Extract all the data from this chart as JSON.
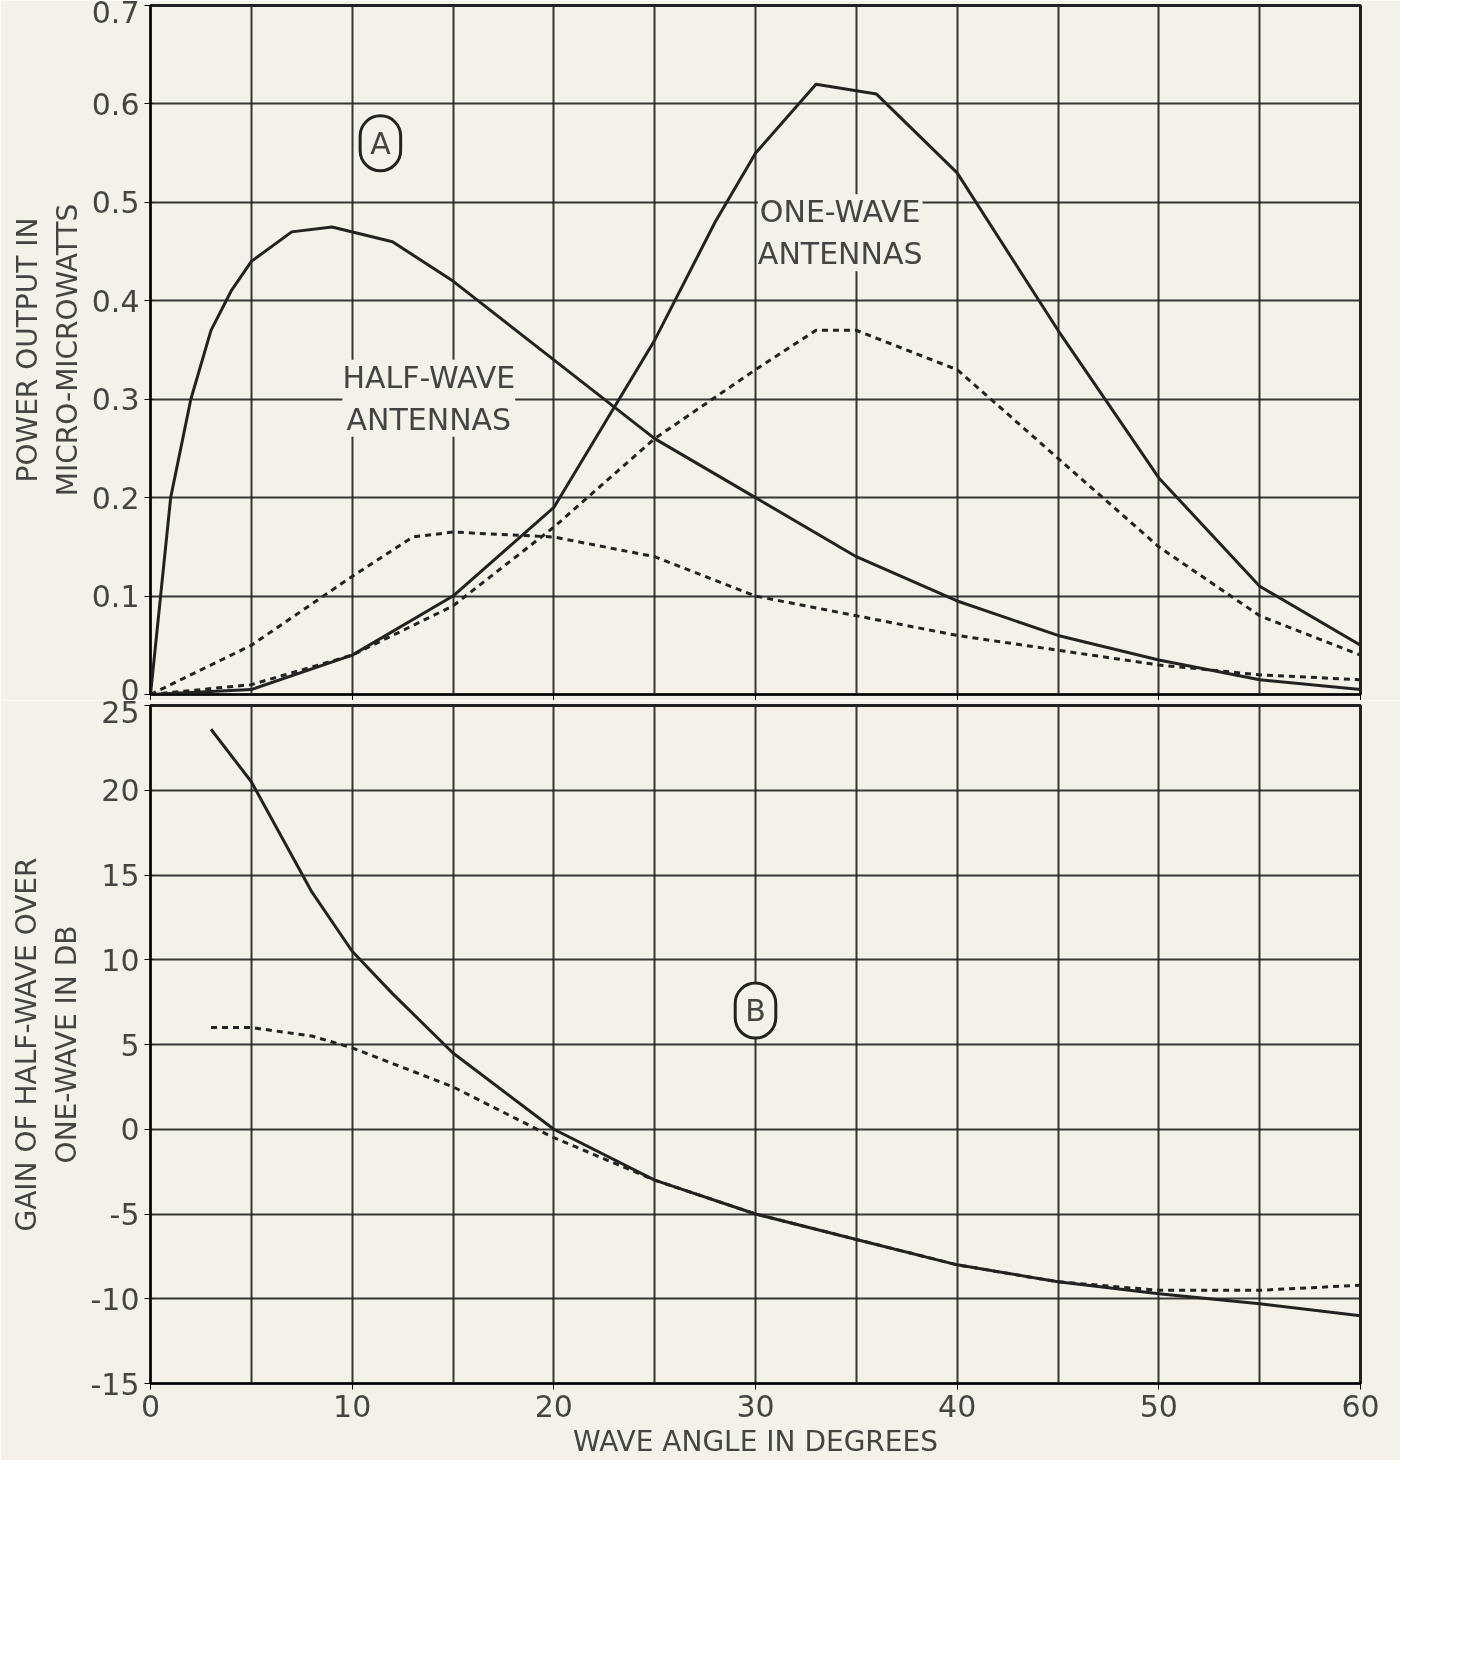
{
  "chart_data": [
    {
      "type": "line",
      "ylabel": "POWER OUTPUT IN\nMICRO-MICROWATTS",
      "xlim": [
        0,
        60
      ],
      "xticks": [
        0,
        10,
        20,
        30,
        40,
        50,
        60
      ],
      "ylim": [
        0,
        0.7
      ],
      "yticks": [
        0,
        0.1,
        0.2,
        0.3,
        0.4,
        0.5,
        0.6,
        0.7
      ],
      "grid": true,
      "tick_labels": "y",
      "annotations": [
        "A",
        "HALF-WAVE\nANTENNAS",
        "ONE-WAVE\nANTENNAS"
      ],
      "series": [
        {
          "color": "#222222",
          "line_style": "solid",
          "x": [
            0,
            0.5,
            1,
            2,
            3,
            4,
            5,
            7,
            9,
            12,
            15,
            20,
            25,
            30,
            35,
            40,
            45,
            50,
            55,
            60
          ],
          "values": [
            0,
            0.1,
            0.2,
            0.3,
            0.37,
            0.41,
            0.44,
            0.47,
            0.475,
            0.46,
            0.42,
            0.34,
            0.26,
            0.2,
            0.14,
            0.095,
            0.06,
            0.035,
            0.015,
            0.005
          ]
        },
        {
          "color": "#222222",
          "line_style": "solid",
          "x": [
            0,
            5,
            10,
            15,
            20,
            25,
            28,
            30,
            33,
            36,
            40,
            45,
            50,
            55,
            60
          ],
          "values": [
            0,
            0.005,
            0.04,
            0.1,
            0.19,
            0.36,
            0.48,
            0.55,
            0.62,
            0.61,
            0.53,
            0.37,
            0.22,
            0.11,
            0.05
          ]
        },
        {
          "color": "#222222",
          "line_style": "dashed",
          "x": [
            0,
            5,
            10,
            13,
            15,
            20,
            25,
            30,
            35,
            40,
            45,
            50,
            55,
            60
          ],
          "values": [
            0,
            0.05,
            0.12,
            0.16,
            0.165,
            0.16,
            0.14,
            0.1,
            0.08,
            0.06,
            0.045,
            0.03,
            0.02,
            0.015
          ]
        },
        {
          "color": "#222222",
          "line_style": "dashed",
          "x": [
            0,
            5,
            10,
            15,
            20,
            25,
            30,
            33,
            35,
            40,
            45,
            50,
            55,
            60
          ],
          "values": [
            0,
            0.01,
            0.04,
            0.09,
            0.17,
            0.26,
            0.33,
            0.37,
            0.37,
            0.33,
            0.24,
            0.15,
            0.08,
            0.04
          ]
        }
      ]
    },
    {
      "type": "line",
      "xlabel": "WAVE ANGLE IN DEGREES",
      "ylabel": "GAIN OF HALF-WAVE OVER\nONE-WAVE IN DB",
      "xlim": [
        0,
        60
      ],
      "xticks": [
        0,
        10,
        20,
        30,
        40,
        50,
        60
      ],
      "ylim": [
        -15,
        25
      ],
      "yticks": [
        -15,
        -10,
        -5,
        0,
        5,
        10,
        15,
        20,
        25
      ],
      "grid": true,
      "annotations": [
        "B"
      ],
      "series": [
        {
          "color": "#222222",
          "line_style": "solid",
          "x": [
            3,
            5,
            8,
            10,
            12,
            15,
            20,
            25,
            30,
            35,
            40,
            45,
            50,
            55,
            60
          ],
          "values": [
            23.6,
            20.5,
            14,
            10.5,
            8,
            4.5,
            0,
            -3,
            -5,
            -6.5,
            -8,
            -9,
            -9.7,
            -10.3,
            -11
          ]
        },
        {
          "color": "#222222",
          "line_style": "dashed",
          "x": [
            3,
            5,
            8,
            10,
            15,
            20,
            25,
            30,
            35,
            40,
            45,
            50,
            55,
            60
          ],
          "values": [
            6,
            6,
            5.5,
            4.8,
            2.5,
            -0.5,
            -3,
            -5,
            -6.5,
            -8,
            -9,
            -9.5,
            -9.5,
            -9.2
          ]
        }
      ]
    }
  ]
}
